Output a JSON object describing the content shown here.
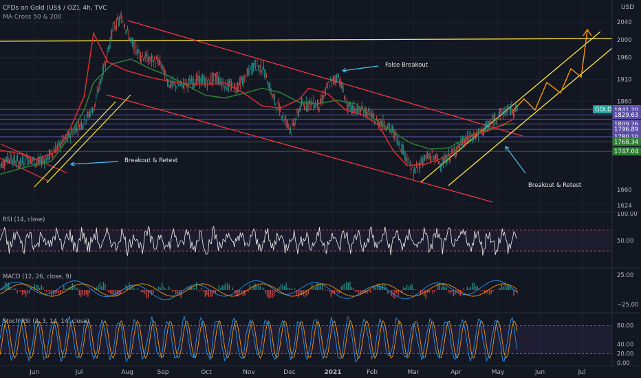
{
  "header": {
    "title": "CFDs on Gold (US$ / OZ), 4h, TVC",
    "indicator": "MA Cross 50 & 200",
    "currency": "USD"
  },
  "chart_data": {
    "type": "line",
    "price_axis": {
      "range": [
        1615,
        2090
      ],
      "ticks": [
        2040,
        2000,
        1960,
        1910,
        1860,
        1660,
        1624
      ]
    },
    "price_tags": [
      {
        "label": "GOLD · 1842.10",
        "value": 1842.1,
        "color": "#26a69a"
      },
      {
        "label": "1841.20",
        "value": 1841.2,
        "color": "#5b4ea8"
      },
      {
        "label": "1829.63",
        "value": 1829.63,
        "color": "#5b4ea8"
      },
      {
        "label": "1809.26",
        "value": 1809.26,
        "color": "#5b4ea8"
      },
      {
        "label": "1796.89",
        "value": 1796.89,
        "color": "#5b4ea8"
      },
      {
        "label": "1780.10",
        "value": 1780.1,
        "color": "#5b4ea8"
      },
      {
        "label": "1768.34",
        "value": 1768.34,
        "color": "#2e7d32"
      },
      {
        "label": "1747.04",
        "value": 1747.04,
        "color": "#2e7d32"
      }
    ],
    "time_axis": [
      "Jun",
      "Jul",
      "Aug",
      "Sep",
      "Oct",
      "Nov",
      "Dec",
      "2021",
      "Feb",
      "Mar",
      "Apr",
      "May",
      "Jun",
      "Jul"
    ],
    "price_path": [
      [
        1720,
        1712
      ],
      [
        1730,
        1735
      ],
      [
        1738,
        1704
      ],
      [
        1745,
        1716
      ],
      [
        1755,
        1688
      ],
      [
        1761,
        1701
      ],
      [
        1772,
        1740
      ],
      [
        1781,
        1766
      ],
      [
        1800,
        1796
      ],
      [
        1820,
        1814
      ],
      [
        1851,
        1841
      ],
      [
        1919,
        1944
      ],
      [
        1990,
        2060
      ],
      [
        2073,
        2030
      ],
      [
        2002,
        1981
      ],
      [
        1952,
        1978
      ],
      [
        1968,
        1940
      ],
      [
        1956,
        1942
      ],
      [
        1924,
        1875
      ],
      [
        1890,
        1904
      ],
      [
        1913,
        1888
      ],
      [
        1895,
        1925
      ],
      [
        1906,
        1902
      ],
      [
        1920,
        1912
      ],
      [
        1902,
        1892
      ],
      [
        1907,
        1875
      ],
      [
        1902,
        1918
      ],
      [
        1935,
        1952
      ],
      [
        1972,
        1898
      ],
      [
        1880,
        1862
      ],
      [
        1818,
        1843
      ],
      [
        1808,
        1782
      ],
      [
        1830,
        1872
      ],
      [
        1858,
        1856
      ],
      [
        1852,
        1853
      ],
      [
        1885,
        1915
      ],
      [
        1948,
        1888
      ],
      [
        1851,
        1841
      ],
      [
        1852,
        1829
      ],
      [
        1846,
        1830
      ],
      [
        1812,
        1816
      ],
      [
        1808,
        1810
      ],
      [
        1790,
        1780
      ],
      [
        1765,
        1724
      ],
      [
        1700,
        1697
      ],
      [
        1736,
        1724
      ],
      [
        1746,
        1725
      ],
      [
        1710,
        1728
      ],
      [
        1737,
        1743
      ],
      [
        1757,
        1768
      ],
      [
        1780,
        1777
      ],
      [
        1785,
        1792
      ],
      [
        1798,
        1815
      ],
      [
        1826,
        1836
      ],
      [
        1842,
        1838
      ],
      [
        1842,
        1842
      ]
    ],
    "ma_red": [
      [
        1750,
        0
      ],
      [
        1740,
        5
      ],
      [
        1727,
        7
      ],
      [
        1745,
        12
      ],
      [
        1798,
        15
      ],
      [
        1872,
        18
      ],
      [
        2015,
        20
      ],
      [
        1950,
        23
      ],
      [
        1930,
        27
      ],
      [
        1915,
        32
      ],
      [
        1906,
        36
      ],
      [
        1900,
        40
      ],
      [
        1899,
        45
      ],
      [
        1902,
        48
      ],
      [
        1880,
        52
      ],
      [
        1850,
        56
      ],
      [
        1845,
        60
      ],
      [
        1865,
        64
      ],
      [
        1890,
        66
      ],
      [
        1878,
        70
      ],
      [
        1840,
        74
      ],
      [
        1828,
        78
      ],
      [
        1806,
        81
      ],
      [
        1750,
        84
      ],
      [
        1715,
        87
      ],
      [
        1718,
        91
      ],
      [
        1729,
        94
      ],
      [
        1745,
        97
      ],
      [
        1780,
        100
      ],
      [
        1792,
        104
      ],
      [
        1810,
        108
      ],
      [
        1821,
        110
      ]
    ],
    "ma_green": [
      [
        1695,
        0
      ],
      [
        1710,
        5
      ],
      [
        1718,
        8
      ],
      [
        1725,
        11
      ],
      [
        1768,
        14
      ],
      [
        1840,
        18
      ],
      [
        1903,
        20
      ],
      [
        1945,
        24
      ],
      [
        1956,
        28
      ],
      [
        1935,
        32
      ],
      [
        1918,
        36
      ],
      [
        1896,
        40
      ],
      [
        1874,
        44
      ],
      [
        1868,
        48
      ],
      [
        1878,
        52
      ],
      [
        1890,
        56
      ],
      [
        1880,
        60
      ],
      [
        1858,
        64
      ],
      [
        1855,
        68
      ],
      [
        1863,
        72
      ],
      [
        1855,
        76
      ],
      [
        1822,
        80
      ],
      [
        1790,
        84
      ],
      [
        1765,
        88
      ],
      [
        1752,
        92
      ],
      [
        1755,
        96
      ],
      [
        1780,
        100
      ],
      [
        1795,
        104
      ],
      [
        1808,
        108
      ],
      [
        1810,
        110
      ]
    ],
    "annotations": [
      "False Breakout",
      "Breakout & Retest",
      "Breakout & Retest"
    ],
    "rsi": {
      "label": "RSI (14, close)",
      "upper": 70,
      "lower": 30,
      "ticks": [
        "100.00",
        "50.00"
      ]
    },
    "macd": {
      "label": "MACD (12, 26, close, 9)",
      "ticks": [
        "25.00",
        "−25.00"
      ]
    },
    "stoch": {
      "label": "Stoch RSI (3, 3, 14, 14, close)",
      "ticks": [
        "80.00",
        "40.00",
        "20.00",
        "0.00"
      ]
    }
  }
}
